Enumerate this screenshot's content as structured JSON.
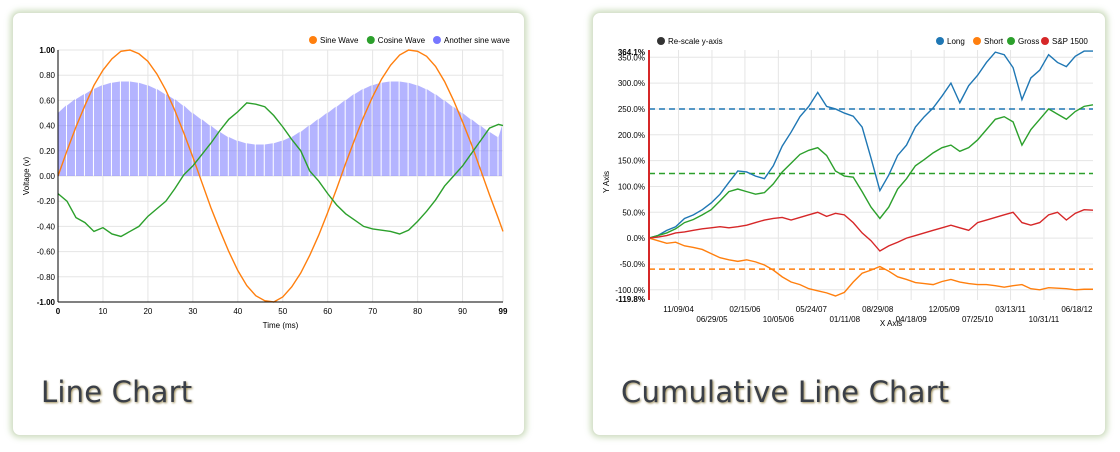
{
  "cards": [
    {
      "title": "Line Chart"
    },
    {
      "title": "Cumulative Line Chart"
    }
  ],
  "chart_data": [
    {
      "type": "line",
      "xlabel": "Time (ms)",
      "ylabel": "Voltage (v)",
      "xlim": [
        0,
        99
      ],
      "ylim": [
        -1,
        1
      ],
      "x_ticks": [
        0,
        10,
        20,
        30,
        40,
        50,
        60,
        70,
        80,
        90,
        99
      ],
      "y_ticks": [
        "-1.00",
        "-0.80",
        "-0.60",
        "-0.40",
        "-0.20",
        "0.00",
        "0.20",
        "0.40",
        "0.60",
        "0.80",
        "1.00"
      ],
      "grid": true,
      "legend_position": "top-right",
      "series": [
        {
          "name": "Sine Wave",
          "color": "#ff7f0e",
          "kind": "line",
          "x": [
            0,
            2,
            4,
            6,
            8,
            10,
            12,
            14,
            16,
            18,
            20,
            22,
            24,
            26,
            28,
            30,
            32,
            34,
            36,
            38,
            40,
            42,
            44,
            46,
            48,
            50,
            52,
            54,
            56,
            58,
            60,
            62,
            64,
            66,
            68,
            70,
            72,
            74,
            76,
            78,
            80,
            82,
            84,
            86,
            88,
            90,
            92,
            94,
            96,
            98,
            99
          ],
          "values": [
            0.0,
            0.2,
            0.39,
            0.56,
            0.72,
            0.84,
            0.93,
            0.99,
            1.0,
            0.97,
            0.91,
            0.81,
            0.68,
            0.52,
            0.34,
            0.15,
            -0.05,
            -0.25,
            -0.43,
            -0.6,
            -0.75,
            -0.87,
            -0.95,
            -0.99,
            -1.0,
            -0.96,
            -0.88,
            -0.77,
            -0.63,
            -0.47,
            -0.29,
            -0.1,
            0.1,
            0.29,
            0.47,
            0.63,
            0.77,
            0.88,
            0.96,
            1.0,
            0.99,
            0.95,
            0.87,
            0.75,
            0.6,
            0.43,
            0.25,
            0.05,
            -0.15,
            -0.34,
            -0.44
          ]
        },
        {
          "name": "Cosine Wave",
          "color": "#2ca02c",
          "kind": "line",
          "x": [
            0,
            2,
            4,
            6,
            8,
            10,
            12,
            14,
            16,
            18,
            20,
            22,
            24,
            26,
            28,
            30,
            32,
            34,
            36,
            38,
            40,
            42,
            44,
            46,
            48,
            50,
            52,
            54,
            56,
            58,
            60,
            62,
            64,
            66,
            68,
            70,
            72,
            74,
            76,
            78,
            80,
            82,
            84,
            86,
            88,
            90,
            92,
            94,
            96,
            98,
            99
          ],
          "values": [
            -0.14,
            -0.2,
            -0.33,
            -0.37,
            -0.44,
            -0.41,
            -0.46,
            -0.48,
            -0.44,
            -0.4,
            -0.32,
            -0.26,
            -0.2,
            -0.1,
            0.01,
            0.08,
            0.17,
            0.26,
            0.36,
            0.45,
            0.51,
            0.58,
            0.57,
            0.55,
            0.48,
            0.39,
            0.29,
            0.2,
            0.04,
            -0.04,
            -0.14,
            -0.23,
            -0.3,
            -0.35,
            -0.4,
            -0.42,
            -0.43,
            -0.44,
            -0.46,
            -0.43,
            -0.36,
            -0.28,
            -0.19,
            -0.08,
            0.0,
            0.08,
            0.18,
            0.28,
            0.38,
            0.41,
            0.4
          ]
        },
        {
          "name": "Another sine wave",
          "color": "#7777ff",
          "kind": "area",
          "x": [
            0,
            2,
            4,
            6,
            8,
            10,
            12,
            14,
            16,
            18,
            20,
            22,
            24,
            26,
            28,
            30,
            32,
            34,
            36,
            38,
            40,
            42,
            44,
            46,
            48,
            50,
            52,
            54,
            56,
            58,
            60,
            62,
            64,
            66,
            68,
            70,
            72,
            74,
            76,
            78,
            80,
            82,
            84,
            86,
            88,
            90,
            92,
            94,
            96,
            98,
            99
          ],
          "values": [
            0.5,
            0.56,
            0.61,
            0.65,
            0.69,
            0.72,
            0.74,
            0.75,
            0.75,
            0.74,
            0.72,
            0.69,
            0.65,
            0.61,
            0.56,
            0.5,
            0.45,
            0.4,
            0.35,
            0.31,
            0.28,
            0.26,
            0.25,
            0.25,
            0.26,
            0.28,
            0.31,
            0.35,
            0.4,
            0.45,
            0.5,
            0.55,
            0.6,
            0.65,
            0.69,
            0.72,
            0.74,
            0.75,
            0.75,
            0.74,
            0.72,
            0.69,
            0.65,
            0.6,
            0.55,
            0.5,
            0.45,
            0.4,
            0.35,
            0.31,
            0.4
          ]
        }
      ]
    },
    {
      "type": "line",
      "xlabel": "X Axis",
      "ylabel": "Y Axis",
      "ylim": [
        -1.198,
        3.641
      ],
      "y_ticks": [
        "-100.0%",
        "-50.0%",
        "0.0%",
        "50.0%",
        "100.0%",
        "150.0%",
        "200.0%",
        "250.0%",
        "300.0%",
        "350.0%"
      ],
      "y_extent_labels": [
        "364.1%",
        "-119.8%"
      ],
      "x_ticks_upper": [
        "11/09/04",
        "02/15/06",
        "05/24/07",
        "08/29/08",
        "12/05/09",
        "03/13/11",
        "06/18/12"
      ],
      "x_ticks_lower": [
        "06/29/05",
        "10/05/06",
        "01/11/08",
        "04/18/09",
        "07/25/10",
        "10/31/11"
      ],
      "control_label": "Re-scale y-axis",
      "grid": true,
      "legend_position": "top-right",
      "series": [
        {
          "name": "Long",
          "color": "#1f77b4",
          "mean": 2.5,
          "values": [
            0.0,
            0.05,
            0.15,
            0.22,
            0.38,
            0.45,
            0.55,
            0.68,
            0.85,
            1.08,
            1.3,
            1.28,
            1.2,
            1.15,
            1.4,
            1.78,
            2.05,
            2.35,
            2.55,
            2.82,
            2.55,
            2.5,
            2.42,
            2.36,
            2.15,
            1.55,
            0.92,
            1.22,
            1.6,
            1.8,
            2.15,
            2.35,
            2.52,
            2.75,
            3.0,
            2.62,
            2.95,
            3.15,
            3.4,
            3.6,
            3.55,
            3.3,
            2.68,
            3.1,
            3.25,
            3.55,
            3.4,
            3.32,
            3.52,
            3.62,
            3.62
          ]
        },
        {
          "name": "Short",
          "color": "#ff7f0e",
          "mean": -0.6,
          "values": [
            0.0,
            -0.05,
            -0.1,
            -0.08,
            -0.15,
            -0.18,
            -0.22,
            -0.3,
            -0.38,
            -0.42,
            -0.45,
            -0.42,
            -0.46,
            -0.52,
            -0.62,
            -0.75,
            -0.85,
            -0.9,
            -0.98,
            -1.02,
            -1.06,
            -1.12,
            -1.05,
            -0.85,
            -0.68,
            -0.62,
            -0.55,
            -0.64,
            -0.75,
            -0.8,
            -0.86,
            -0.88,
            -0.9,
            -0.84,
            -0.8,
            -0.85,
            -0.88,
            -0.9,
            -0.9,
            -0.92,
            -0.95,
            -0.92,
            -0.9,
            -0.98,
            -1.0,
            -0.96,
            -0.97,
            -0.98,
            -1.0,
            -0.99,
            -0.99
          ]
        },
        {
          "name": "Gross",
          "color": "#2ca02c",
          "mean": 1.25,
          "values": [
            0.0,
            0.05,
            0.1,
            0.18,
            0.3,
            0.36,
            0.45,
            0.55,
            0.72,
            0.9,
            0.95,
            0.9,
            0.85,
            0.88,
            1.05,
            1.28,
            1.45,
            1.62,
            1.7,
            1.75,
            1.6,
            1.3,
            1.2,
            1.18,
            0.9,
            0.6,
            0.38,
            0.6,
            0.95,
            1.15,
            1.4,
            1.52,
            1.65,
            1.75,
            1.8,
            1.68,
            1.75,
            1.9,
            2.1,
            2.3,
            2.35,
            2.25,
            1.8,
            2.1,
            2.3,
            2.5,
            2.4,
            2.3,
            2.45,
            2.55,
            2.58
          ]
        },
        {
          "name": "S&P 1500",
          "color": "#d62728",
          "mean": null,
          "values": [
            0.0,
            0.02,
            0.05,
            0.1,
            0.12,
            0.15,
            0.18,
            0.2,
            0.22,
            0.2,
            0.22,
            0.25,
            0.3,
            0.35,
            0.38,
            0.4,
            0.35,
            0.4,
            0.45,
            0.5,
            0.42,
            0.48,
            0.45,
            0.3,
            0.1,
            -0.05,
            -0.25,
            -0.15,
            -0.08,
            0.0,
            0.05,
            0.1,
            0.15,
            0.2,
            0.25,
            0.2,
            0.15,
            0.3,
            0.35,
            0.4,
            0.45,
            0.5,
            0.3,
            0.25,
            0.3,
            0.45,
            0.5,
            0.35,
            0.48,
            0.55,
            0.54
          ]
        }
      ]
    }
  ]
}
